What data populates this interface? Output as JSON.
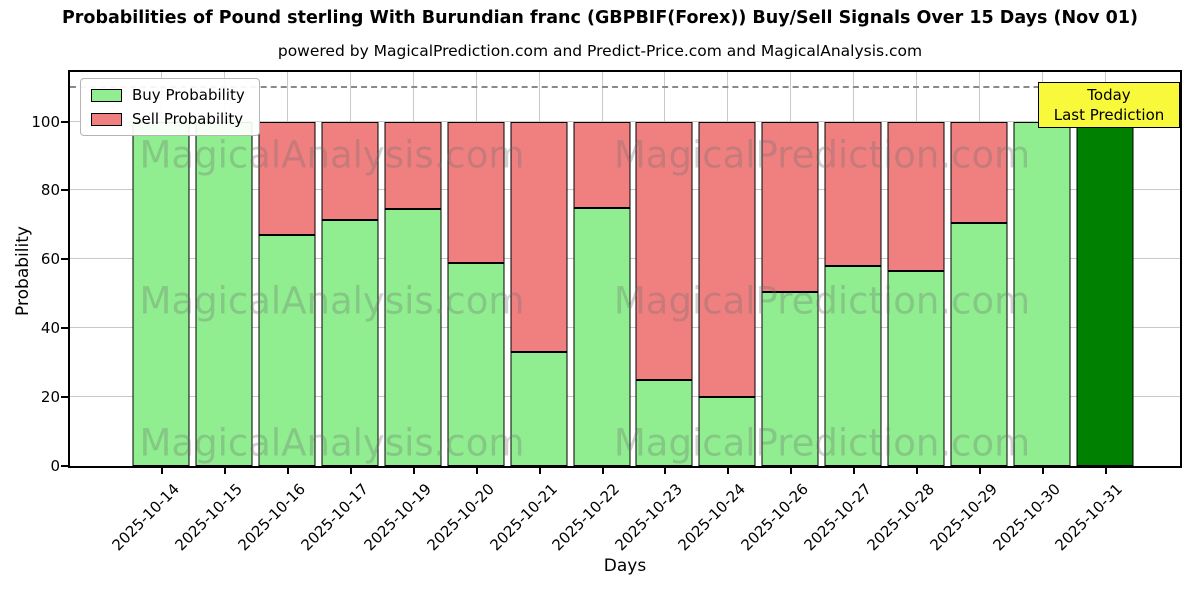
{
  "title": "Probabilities of Pound sterling With Burundian franc (GBPBIF(Forex)) Buy/Sell Signals Over 15 Days (Nov 01)",
  "subtitle": "powered by MagicalPrediction.com and Predict-Price.com and MagicalAnalysis.com",
  "axes": {
    "ylabel": "Probability",
    "xlabel": "Days",
    "yticks": [
      0,
      20,
      40,
      60,
      80,
      100
    ],
    "ylim": [
      0,
      115
    ]
  },
  "legend": [
    {
      "label": "Buy Probability",
      "color": "#90ee90"
    },
    {
      "label": "Sell Probability",
      "color": "#f08080"
    }
  ],
  "annotation": {
    "lines": [
      "Today",
      "Last Prediction"
    ],
    "bg": "#f9f93c"
  },
  "watermarks": [
    "MagicalAnalysis.com",
    "MagicalPrediction.com"
  ],
  "colors": {
    "buy": "#90ee90",
    "sell": "#f08080",
    "today_bar": "#008000",
    "grid": "#c9c9c9",
    "threshold_line": "#8a8a8a"
  },
  "chart_data": {
    "type": "bar",
    "stacked": true,
    "title": "Probabilities of Pound sterling With Burundian franc (GBPBIF(Forex)) Buy/Sell Signals Over 15 Days (Nov 01)",
    "xlabel": "Days",
    "ylabel": "Probability",
    "ylim": [
      0,
      115
    ],
    "grid": true,
    "legend_position": "upper left",
    "threshold_dashed_line_y": 110,
    "categories": [
      "2025-10-14",
      "2025-10-15",
      "2025-10-16",
      "2025-10-17",
      "2025-10-19",
      "2025-10-20",
      "2025-10-21",
      "2025-10-22",
      "2025-10-23",
      "2025-10-24",
      "2025-10-26",
      "2025-10-27",
      "2025-10-28",
      "2025-10-29",
      "2025-10-30",
      "2025-10-31"
    ],
    "series": [
      {
        "name": "Buy Probability",
        "color": "#90ee90",
        "values": [
          100,
          100,
          67,
          71.5,
          74.5,
          59,
          33,
          75,
          25,
          20,
          50.5,
          58,
          56.5,
          70.5,
          100,
          100
        ]
      },
      {
        "name": "Sell Probability",
        "color": "#f08080",
        "values": [
          0,
          0,
          33,
          28.5,
          25.5,
          41,
          67,
          25,
          75,
          80,
          49.5,
          42,
          43.5,
          29.5,
          0,
          0
        ]
      }
    ],
    "today_index": 15,
    "today_color": "#008000"
  }
}
